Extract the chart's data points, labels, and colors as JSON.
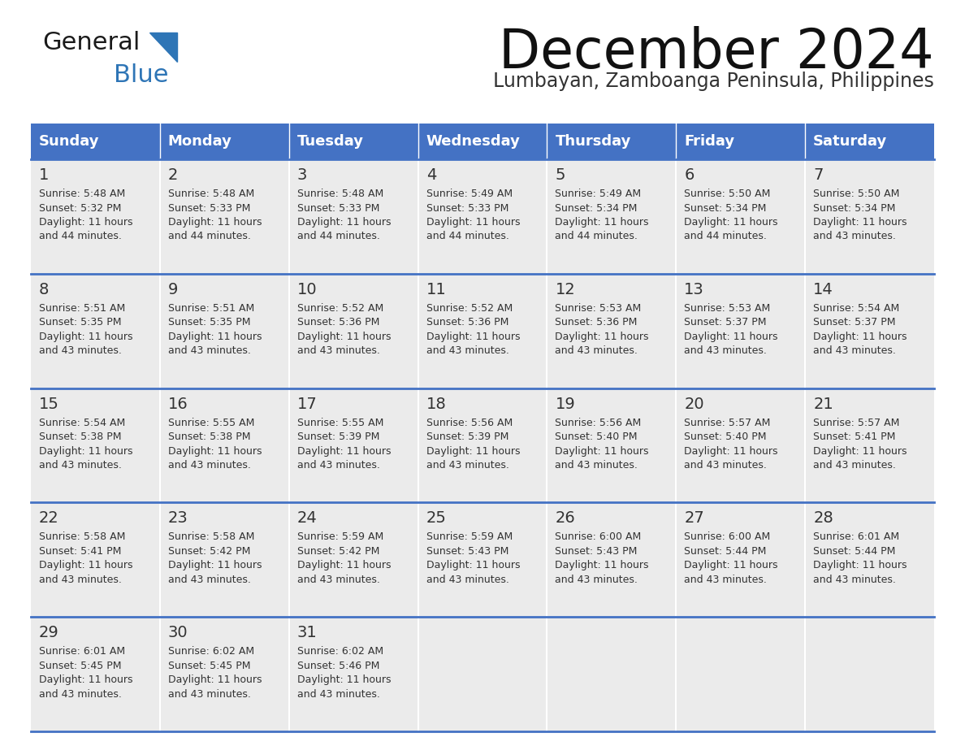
{
  "title": "December 2024",
  "subtitle": "Lumbayan, Zamboanga Peninsula, Philippines",
  "header_bg_color": "#4472C4",
  "header_text_color": "#FFFFFF",
  "day_names": [
    "Sunday",
    "Monday",
    "Tuesday",
    "Wednesday",
    "Thursday",
    "Friday",
    "Saturday"
  ],
  "cell_bg_color": "#EBEBEB",
  "cell_border_color": "#4472C4",
  "date_text_color": "#333333",
  "info_text_color": "#333333",
  "bg_color": "#FFFFFF",
  "logo_general_color": "#1a1a1a",
  "logo_blue_color": "#2E75B6",
  "days": [
    {
      "day": 1,
      "col": 0,
      "row": 0,
      "sunrise": "5:48 AM",
      "sunset": "5:32 PM",
      "daylight_h": "11 hours",
      "daylight_m": "44 minutes."
    },
    {
      "day": 2,
      "col": 1,
      "row": 0,
      "sunrise": "5:48 AM",
      "sunset": "5:33 PM",
      "daylight_h": "11 hours",
      "daylight_m": "44 minutes."
    },
    {
      "day": 3,
      "col": 2,
      "row": 0,
      "sunrise": "5:48 AM",
      "sunset": "5:33 PM",
      "daylight_h": "11 hours",
      "daylight_m": "44 minutes."
    },
    {
      "day": 4,
      "col": 3,
      "row": 0,
      "sunrise": "5:49 AM",
      "sunset": "5:33 PM",
      "daylight_h": "11 hours",
      "daylight_m": "44 minutes."
    },
    {
      "day": 5,
      "col": 4,
      "row": 0,
      "sunrise": "5:49 AM",
      "sunset": "5:34 PM",
      "daylight_h": "11 hours",
      "daylight_m": "44 minutes."
    },
    {
      "day": 6,
      "col": 5,
      "row": 0,
      "sunrise": "5:50 AM",
      "sunset": "5:34 PM",
      "daylight_h": "11 hours",
      "daylight_m": "44 minutes."
    },
    {
      "day": 7,
      "col": 6,
      "row": 0,
      "sunrise": "5:50 AM",
      "sunset": "5:34 PM",
      "daylight_h": "11 hours",
      "daylight_m": "43 minutes."
    },
    {
      "day": 8,
      "col": 0,
      "row": 1,
      "sunrise": "5:51 AM",
      "sunset": "5:35 PM",
      "daylight_h": "11 hours",
      "daylight_m": "43 minutes."
    },
    {
      "day": 9,
      "col": 1,
      "row": 1,
      "sunrise": "5:51 AM",
      "sunset": "5:35 PM",
      "daylight_h": "11 hours",
      "daylight_m": "43 minutes."
    },
    {
      "day": 10,
      "col": 2,
      "row": 1,
      "sunrise": "5:52 AM",
      "sunset": "5:36 PM",
      "daylight_h": "11 hours",
      "daylight_m": "43 minutes."
    },
    {
      "day": 11,
      "col": 3,
      "row": 1,
      "sunrise": "5:52 AM",
      "sunset": "5:36 PM",
      "daylight_h": "11 hours",
      "daylight_m": "43 minutes."
    },
    {
      "day": 12,
      "col": 4,
      "row": 1,
      "sunrise": "5:53 AM",
      "sunset": "5:36 PM",
      "daylight_h": "11 hours",
      "daylight_m": "43 minutes."
    },
    {
      "day": 13,
      "col": 5,
      "row": 1,
      "sunrise": "5:53 AM",
      "sunset": "5:37 PM",
      "daylight_h": "11 hours",
      "daylight_m": "43 minutes."
    },
    {
      "day": 14,
      "col": 6,
      "row": 1,
      "sunrise": "5:54 AM",
      "sunset": "5:37 PM",
      "daylight_h": "11 hours",
      "daylight_m": "43 minutes."
    },
    {
      "day": 15,
      "col": 0,
      "row": 2,
      "sunrise": "5:54 AM",
      "sunset": "5:38 PM",
      "daylight_h": "11 hours",
      "daylight_m": "43 minutes."
    },
    {
      "day": 16,
      "col": 1,
      "row": 2,
      "sunrise": "5:55 AM",
      "sunset": "5:38 PM",
      "daylight_h": "11 hours",
      "daylight_m": "43 minutes."
    },
    {
      "day": 17,
      "col": 2,
      "row": 2,
      "sunrise": "5:55 AM",
      "sunset": "5:39 PM",
      "daylight_h": "11 hours",
      "daylight_m": "43 minutes."
    },
    {
      "day": 18,
      "col": 3,
      "row": 2,
      "sunrise": "5:56 AM",
      "sunset": "5:39 PM",
      "daylight_h": "11 hours",
      "daylight_m": "43 minutes."
    },
    {
      "day": 19,
      "col": 4,
      "row": 2,
      "sunrise": "5:56 AM",
      "sunset": "5:40 PM",
      "daylight_h": "11 hours",
      "daylight_m": "43 minutes."
    },
    {
      "day": 20,
      "col": 5,
      "row": 2,
      "sunrise": "5:57 AM",
      "sunset": "5:40 PM",
      "daylight_h": "11 hours",
      "daylight_m": "43 minutes."
    },
    {
      "day": 21,
      "col": 6,
      "row": 2,
      "sunrise": "5:57 AM",
      "sunset": "5:41 PM",
      "daylight_h": "11 hours",
      "daylight_m": "43 minutes."
    },
    {
      "day": 22,
      "col": 0,
      "row": 3,
      "sunrise": "5:58 AM",
      "sunset": "5:41 PM",
      "daylight_h": "11 hours",
      "daylight_m": "43 minutes."
    },
    {
      "day": 23,
      "col": 1,
      "row": 3,
      "sunrise": "5:58 AM",
      "sunset": "5:42 PM",
      "daylight_h": "11 hours",
      "daylight_m": "43 minutes."
    },
    {
      "day": 24,
      "col": 2,
      "row": 3,
      "sunrise": "5:59 AM",
      "sunset": "5:42 PM",
      "daylight_h": "11 hours",
      "daylight_m": "43 minutes."
    },
    {
      "day": 25,
      "col": 3,
      "row": 3,
      "sunrise": "5:59 AM",
      "sunset": "5:43 PM",
      "daylight_h": "11 hours",
      "daylight_m": "43 minutes."
    },
    {
      "day": 26,
      "col": 4,
      "row": 3,
      "sunrise": "6:00 AM",
      "sunset": "5:43 PM",
      "daylight_h": "11 hours",
      "daylight_m": "43 minutes."
    },
    {
      "day": 27,
      "col": 5,
      "row": 3,
      "sunrise": "6:00 AM",
      "sunset": "5:44 PM",
      "daylight_h": "11 hours",
      "daylight_m": "43 minutes."
    },
    {
      "day": 28,
      "col": 6,
      "row": 3,
      "sunrise": "6:01 AM",
      "sunset": "5:44 PM",
      "daylight_h": "11 hours",
      "daylight_m": "43 minutes."
    },
    {
      "day": 29,
      "col": 0,
      "row": 4,
      "sunrise": "6:01 AM",
      "sunset": "5:45 PM",
      "daylight_h": "11 hours",
      "daylight_m": "43 minutes."
    },
    {
      "day": 30,
      "col": 1,
      "row": 4,
      "sunrise": "6:02 AM",
      "sunset": "5:45 PM",
      "daylight_h": "11 hours",
      "daylight_m": "43 minutes."
    },
    {
      "day": 31,
      "col": 2,
      "row": 4,
      "sunrise": "6:02 AM",
      "sunset": "5:46 PM",
      "daylight_h": "11 hours",
      "daylight_m": "43 minutes."
    }
  ]
}
